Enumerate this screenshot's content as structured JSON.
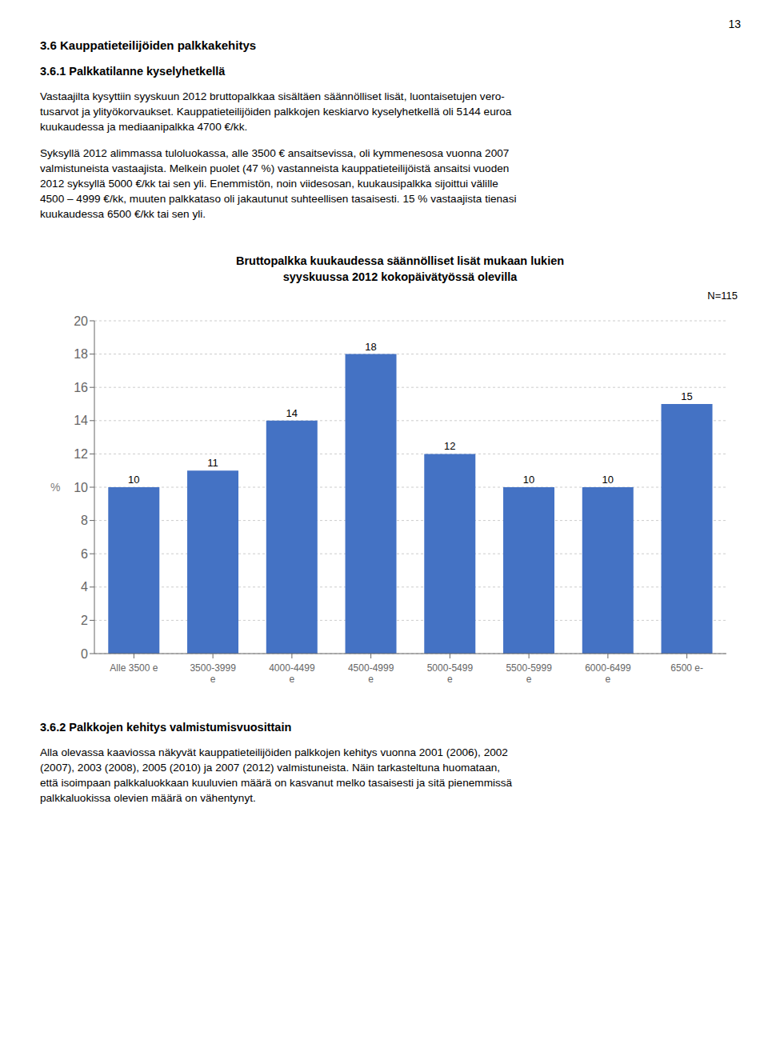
{
  "page_number": "13",
  "heading1": "3.6  Kauppatieteilijöiden palkkakehitys",
  "heading2": "3.6.1  Palkkatilanne kyselyhetkellä",
  "para1": [
    "Vastaajilta kysyttiin syyskuun 2012 bruttopalkkaa sisältäen säännölliset lisät, luontaisetujen vero-",
    "tusarvot ja ylityökorvaukset. Kauppatieteilijöiden palkkojen keskiarvo kyselyhetkellä oli 5144 euroa",
    "kuukaudessa ja mediaanipalkka 4700 €/kk."
  ],
  "para2": [
    "Syksyllä 2012 alimmassa tuloluokassa, alle 3500 € ansaitsevissa, oli kymmenesosa vuonna 2007",
    "valmistuneista vastaajista. Melkein puolet (47 %) vastanneista kauppatieteilijöistä ansaitsi vuoden",
    "2012 syksyllä 5000 €/kk tai sen yli. Enemmistön, noin viidesosan, kuukausipalkka sijoittui välille",
    "4500 – 4999 €/kk, muuten palkkataso oli jakautunut suhteellisen tasaisesti. 15 % vastaajista tienasi",
    "kuukaudessa 6500 €/kk tai sen yli."
  ],
  "heading3": "3.6.2  Palkkojen kehitys valmistumisvuosittain",
  "para3": [
    "Alla olevassa kaaviossa näkyvät kauppatieteilijöiden palkkojen kehitys vuonna 2001 (2006), 2002",
    "(2007), 2003 (2008), 2005 (2010) ja 2007 (2012) valmistuneista. Näin tarkasteltuna huomataan,",
    "että isoimpaan palkkaluokkaan kuuluvien määrä on kasvanut melko tasaisesti ja sitä pienemmissä",
    "palkkaluokissa olevien määrä on vähentynyt."
  ],
  "chart_data": {
    "type": "bar",
    "title": "Bruttopalkka kuukaudessa säännölliset lisät mukaan lukien\nsyyskuussa 2012 kokopäivätyössä olevilla",
    "annotation": "N=115",
    "ylabel": "%",
    "categories": [
      "Alle 3500 e",
      "3500-3999\ne",
      "4000-4499\ne",
      "4500-4999\ne",
      "5000-5499\ne",
      "5500-5999\ne",
      "6000-6499\ne",
      "6500 e-"
    ],
    "values": [
      10,
      11,
      14,
      18,
      12,
      10,
      10,
      15
    ],
    "color": "#4472C4",
    "ylim": [
      0,
      20
    ],
    "yticks": [
      0,
      2,
      4,
      6,
      8,
      10,
      12,
      14,
      16,
      18,
      20
    ],
    "grid": true,
    "data_labels": true
  }
}
